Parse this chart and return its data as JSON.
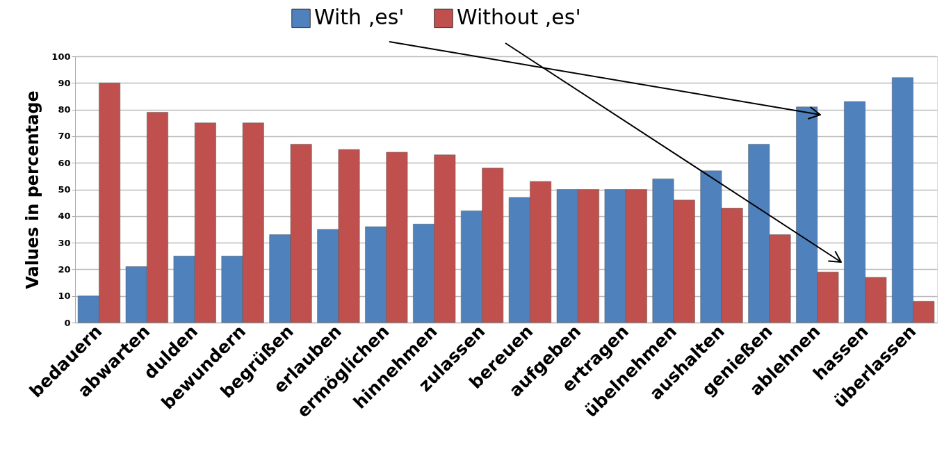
{
  "chart_data": {
    "type": "bar",
    "ylabel": "Values in percentage",
    "categories": [
      "bedauern",
      "abwarten",
      "dulden",
      "bewundern",
      "begrüßen",
      "erlauben",
      "ermöglichen",
      "hinnehmen",
      "zulassen",
      "bereuen",
      "aufgeben",
      "ertragen",
      "übelnehmen",
      "aushalten",
      "genießen",
      "ablehnen",
      "hassen",
      "überlassen"
    ],
    "series": [
      {
        "name": "With ,es'",
        "color": "#4f81bd",
        "values": [
          10,
          21,
          25,
          25,
          33,
          35,
          36,
          37,
          42,
          47,
          50,
          50,
          54,
          57,
          67,
          81,
          83,
          92
        ]
      },
      {
        "name": "Without ,es'",
        "color": "#c0504d",
        "values": [
          90,
          79,
          75,
          75,
          67,
          65,
          64,
          63,
          58,
          53,
          50,
          50,
          46,
          43,
          33,
          19,
          17,
          8
        ]
      }
    ],
    "ylim": [
      0,
      100
    ],
    "yticks": [
      0,
      10,
      20,
      30,
      40,
      50,
      60,
      70,
      80,
      90,
      100
    ],
    "grid": "y",
    "legend": "top"
  }
}
